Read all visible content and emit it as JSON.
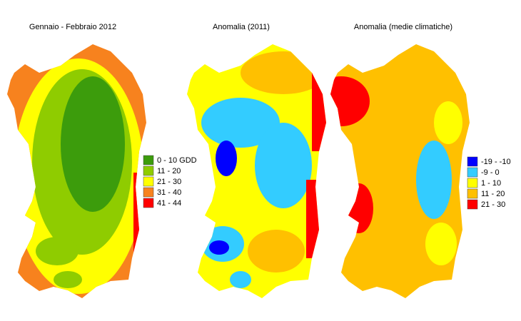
{
  "maps": [
    {
      "title": "Gennaio - Febbraio 2012"
    },
    {
      "title": "Anomalia (2011)"
    },
    {
      "title": "Anomalia (medie climatiche)"
    }
  ],
  "legends": [
    {
      "items": [
        {
          "label": "0 - 10 GDD",
          "color": "#3c9c0c"
        },
        {
          "label": "11 - 20",
          "color": "#8fcc00"
        },
        {
          "label": "21 - 30",
          "color": "#ffff00"
        },
        {
          "label": "31 - 40",
          "color": "#f7821e"
        },
        {
          "label": "41 - 44",
          "color": "#ff0000"
        }
      ]
    },
    {
      "items": [
        {
          "label": "-19 - -10",
          "color": "#0000ff"
        },
        {
          "label": "-9 - 0",
          "color": "#33ccff"
        },
        {
          "label": "1 - 10",
          "color": "#ffff00"
        },
        {
          "label": "11 - 20",
          "color": "#ffc000"
        },
        {
          "label": "21 - 30",
          "color": "#ff0000"
        }
      ]
    }
  ]
}
